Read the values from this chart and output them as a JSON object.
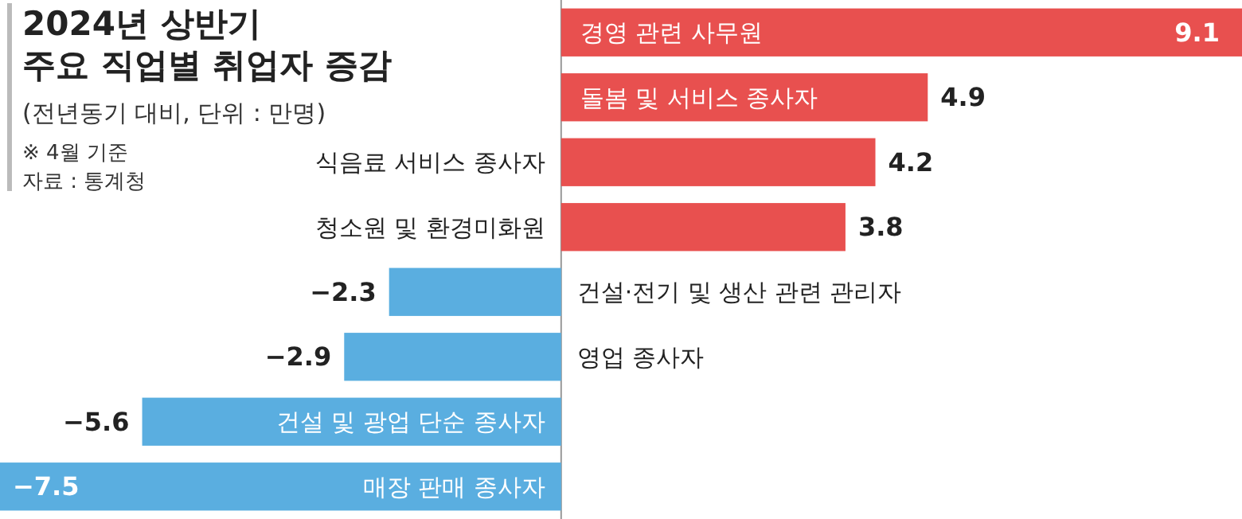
{
  "chart_data": {
    "type": "bar",
    "orientation": "horizontal",
    "title": "2024년 상반기\n주요 직업별 취업자 증감",
    "subtitle": "(전년동기 대비, 단위 : 만명)",
    "annotations": [
      "※ 4월 기준",
      "자료 : 통계청"
    ],
    "categories": [
      "경영 관련 사무원",
      "돌봄 및 서비스 종사자",
      "식음료 서비스 종사자",
      "청소원 및 환경미화원",
      "건설·전기 및 생산 관련 관리자",
      "영업 종사자",
      "건설 및 광업 단순 종사자",
      "매장 판매 종사자"
    ],
    "values": [
      9.1,
      4.9,
      4.2,
      3.8,
      -2.3,
      -2.9,
      -5.6,
      -7.5
    ],
    "colors": [
      "#e8504f",
      "#e8504f",
      "#e8504f",
      "#e8504f",
      "#5aaee0",
      "#5aaee0",
      "#5aaee0",
      "#5aaee0"
    ],
    "data_labels": true
  }
}
